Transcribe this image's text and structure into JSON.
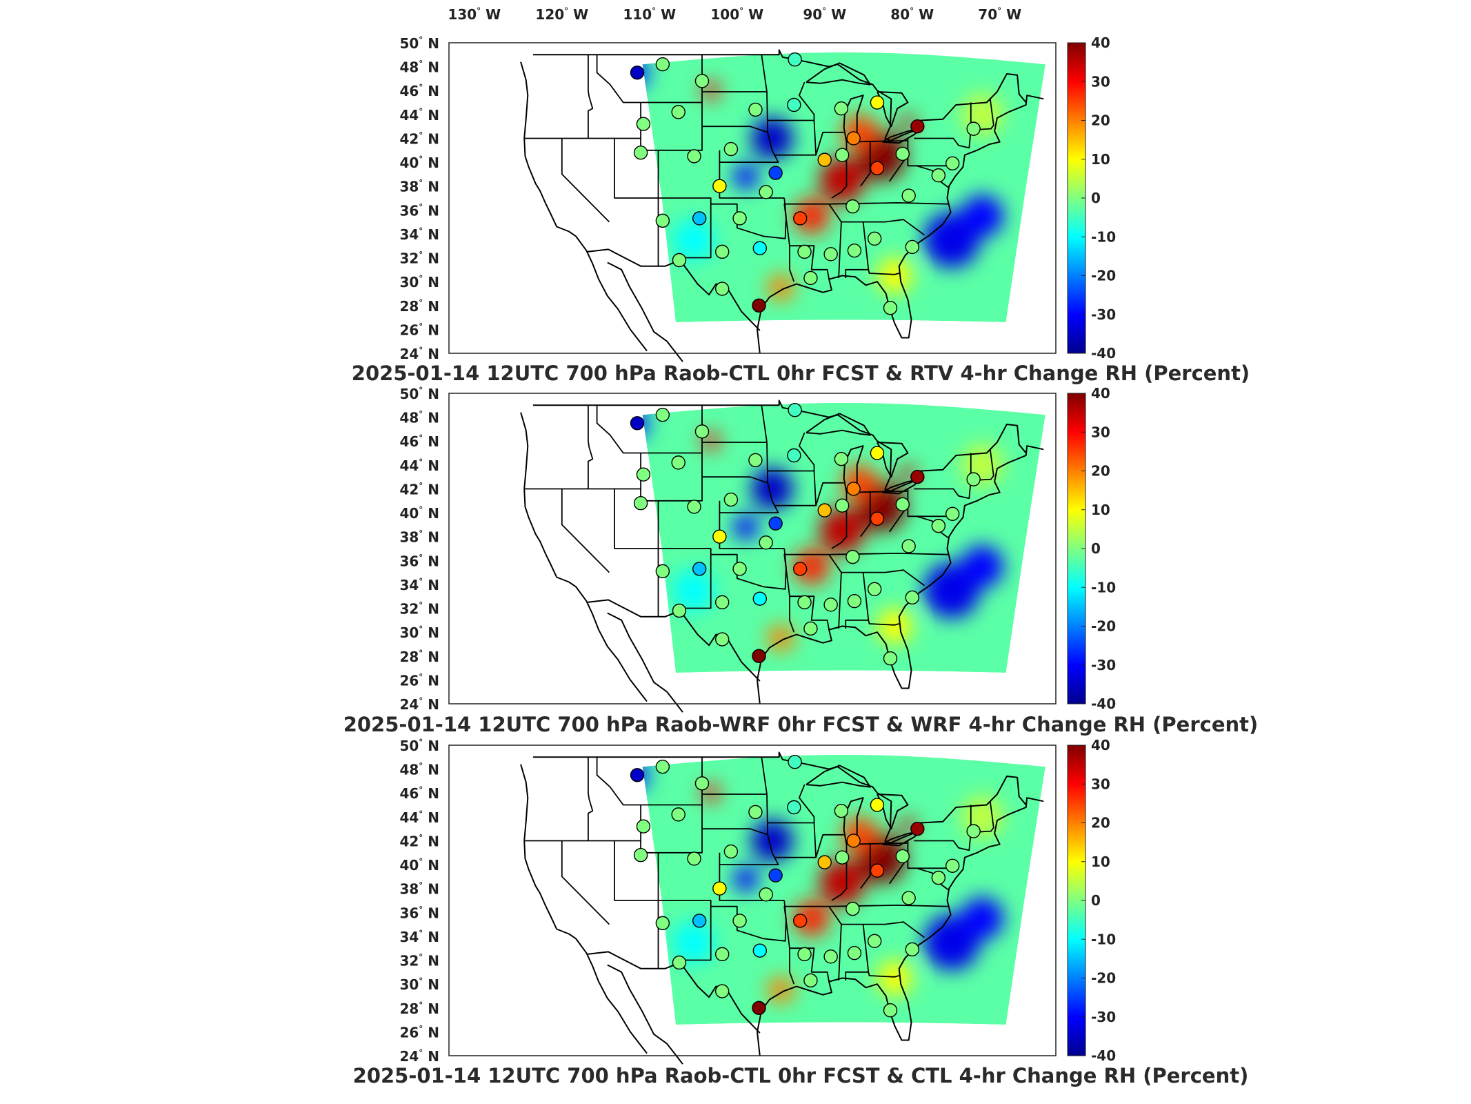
{
  "top_lon_labels": [
    {
      "deg": "130",
      "hemi": "W"
    },
    {
      "deg": "120",
      "hemi": "W"
    },
    {
      "deg": "110",
      "hemi": "W"
    },
    {
      "deg": "100",
      "hemi": "W"
    },
    {
      "deg": "90",
      "hemi": "W"
    },
    {
      "deg": "80",
      "hemi": "W"
    },
    {
      "deg": "70",
      "hemi": "W"
    }
  ],
  "lat_labels": [
    {
      "deg": "50",
      "hemi": "N"
    },
    {
      "deg": "48",
      "hemi": "N"
    },
    {
      "deg": "46",
      "hemi": "N"
    },
    {
      "deg": "44",
      "hemi": "N"
    },
    {
      "deg": "42",
      "hemi": "N"
    },
    {
      "deg": "40",
      "hemi": "N"
    },
    {
      "deg": "38",
      "hemi": "N"
    },
    {
      "deg": "36",
      "hemi": "N"
    },
    {
      "deg": "34",
      "hemi": "N"
    },
    {
      "deg": "32",
      "hemi": "N"
    },
    {
      "deg": "30",
      "hemi": "N"
    },
    {
      "deg": "28",
      "hemi": "N"
    },
    {
      "deg": "26",
      "hemi": "N"
    },
    {
      "deg": "24",
      "hemi": "N"
    }
  ],
  "colorbar": {
    "ticks": [
      "40",
      "30",
      "20",
      "10",
      "0",
      "-10",
      "-20",
      "-30",
      "-40"
    ],
    "min": -40,
    "max": 40,
    "colors": [
      "#00008f",
      "#0000ff",
      "#0080ff",
      "#00ffff",
      "#80ff80",
      "#ffff00",
      "#ff8000",
      "#ff0000",
      "#800000"
    ]
  },
  "panels": [
    {
      "title": "2025-01-14 12UTC 700 hPa Raob-CTL 0hr FCST & RTV 4-hr Change RH (Percent)"
    },
    {
      "title": "2025-01-14 12UTC 700 hPa Raob-WRF 0hr FCST & WRF 4-hr Change RH (Percent)"
    },
    {
      "title": "2025-01-14 12UTC 700 hPa Raob-CTL 0hr FCST & CTL 4-hr Change RH (Percent)"
    }
  ],
  "field_blobs": [
    {
      "lon": -83.5,
      "lat": 40.5,
      "value": 40,
      "r": 2.8
    },
    {
      "lon": -88.0,
      "lat": 38.5,
      "value": 35,
      "r": 2.6
    },
    {
      "lon": -86.0,
      "lat": 42.5,
      "value": 25,
      "r": 2.0
    },
    {
      "lon": -91.5,
      "lat": 35.5,
      "value": 28,
      "r": 2.0
    },
    {
      "lon": -96.0,
      "lat": 42.0,
      "value": -35,
      "r": 2.4
    },
    {
      "lon": -99.0,
      "lat": 38.8,
      "value": -30,
      "r": 1.4
    },
    {
      "lon": -75.5,
      "lat": 33.5,
      "value": -32,
      "r": 3.2
    },
    {
      "lon": -72.0,
      "lat": 35.5,
      "value": -30,
      "r": 2.4
    },
    {
      "lon": -112.0,
      "lat": 47.5,
      "value": -25,
      "r": 2.0
    },
    {
      "lon": -103.0,
      "lat": 46.0,
      "value": 30,
      "r": 1.0
    },
    {
      "lon": -80.5,
      "lat": 43.3,
      "value": 35,
      "r": 0.9
    },
    {
      "lon": -95.0,
      "lat": 29.5,
      "value": 20,
      "r": 1.5
    },
    {
      "lon": -105.0,
      "lat": 33.5,
      "value": -10,
      "r": 2.4
    },
    {
      "lon": -82.0,
      "lat": 30.5,
      "value": 10,
      "r": 2.0
    },
    {
      "lon": -72.0,
      "lat": 44.0,
      "value": 5,
      "r": 2.4
    }
  ],
  "raob_stations": [
    {
      "lon": -111.4,
      "lat": 47.5,
      "value": -35
    },
    {
      "lon": -108.5,
      "lat": 48.2,
      "value": 0
    },
    {
      "lon": -104.0,
      "lat": 46.8,
      "value": 0
    },
    {
      "lon": -93.4,
      "lat": 48.6,
      "value": -5
    },
    {
      "lon": -106.7,
      "lat": 44.2,
      "value": 0
    },
    {
      "lon": -110.7,
      "lat": 43.2,
      "value": 0
    },
    {
      "lon": -97.9,
      "lat": 44.4,
      "value": 0
    },
    {
      "lon": -93.5,
      "lat": 44.8,
      "value": -5
    },
    {
      "lon": -84.0,
      "lat": 45.0,
      "value": 10
    },
    {
      "lon": -88.1,
      "lat": 44.5,
      "value": 0
    },
    {
      "lon": -79.4,
      "lat": 43.0,
      "value": 38
    },
    {
      "lon": -73.0,
      "lat": 42.8,
      "value": 0
    },
    {
      "lon": -90.0,
      "lat": 40.2,
      "value": 15
    },
    {
      "lon": -86.7,
      "lat": 42.0,
      "value": 20
    },
    {
      "lon": -84.0,
      "lat": 39.5,
      "value": 25
    },
    {
      "lon": -81.1,
      "lat": 40.7,
      "value": 0
    },
    {
      "lon": -111.0,
      "lat": 40.8,
      "value": 0
    },
    {
      "lon": -104.9,
      "lat": 40.5,
      "value": 0
    },
    {
      "lon": -100.7,
      "lat": 41.1,
      "value": 0
    },
    {
      "lon": -95.6,
      "lat": 39.1,
      "value": -25
    },
    {
      "lon": -102.0,
      "lat": 38.0,
      "value": 10
    },
    {
      "lon": -88.0,
      "lat": 40.6,
      "value": 0
    },
    {
      "lon": -96.7,
      "lat": 37.5,
      "value": 0
    },
    {
      "lon": -92.8,
      "lat": 35.3,
      "value": 25
    },
    {
      "lon": -86.8,
      "lat": 36.3,
      "value": 0
    },
    {
      "lon": -80.4,
      "lat": 37.2,
      "value": 0
    },
    {
      "lon": -77.0,
      "lat": 38.9,
      "value": 0
    },
    {
      "lon": -75.4,
      "lat": 39.9,
      "value": 0
    },
    {
      "lon": -108.5,
      "lat": 35.1,
      "value": 0
    },
    {
      "lon": -104.3,
      "lat": 35.3,
      "value": -15
    },
    {
      "lon": -99.7,
      "lat": 35.3,
      "value": 0
    },
    {
      "lon": -97.4,
      "lat": 32.8,
      "value": -10
    },
    {
      "lon": -101.7,
      "lat": 32.5,
      "value": 0
    },
    {
      "lon": -106.6,
      "lat": 31.8,
      "value": 0
    },
    {
      "lon": -92.3,
      "lat": 32.5,
      "value": 0
    },
    {
      "lon": -89.3,
      "lat": 32.3,
      "value": 0
    },
    {
      "lon": -86.6,
      "lat": 32.6,
      "value": 0
    },
    {
      "lon": -84.3,
      "lat": 33.6,
      "value": 0
    },
    {
      "lon": -80.0,
      "lat": 32.9,
      "value": 0
    },
    {
      "lon": -91.6,
      "lat": 30.3,
      "value": 0
    },
    {
      "lon": -101.7,
      "lat": 29.4,
      "value": 0
    },
    {
      "lon": -97.5,
      "lat": 28.0,
      "value": 40
    },
    {
      "lon": -82.5,
      "lat": 27.8,
      "value": 0
    }
  ]
}
